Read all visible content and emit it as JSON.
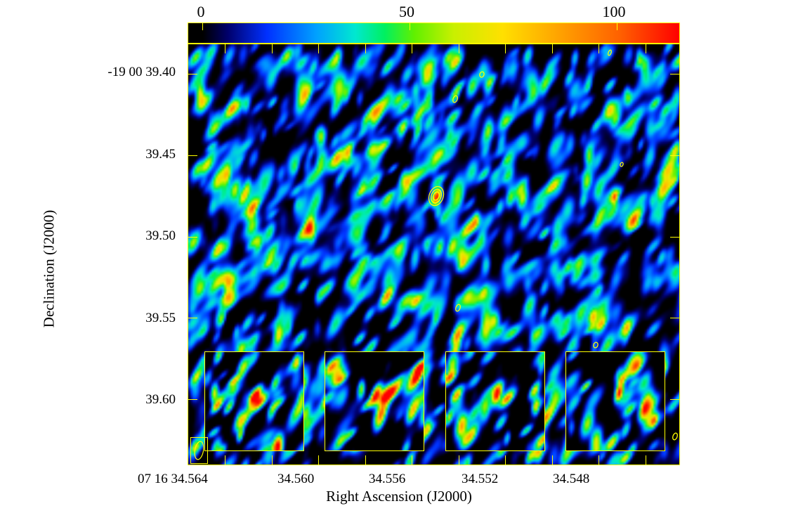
{
  "chart_data": {
    "type": "heatmap",
    "title": "",
    "xlabel": "Right Ascension (J2000)",
    "ylabel": "Declination (J2000)",
    "x_tick_labels": [
      "07 16 34.564",
      "34.560",
      "34.556",
      "34.552",
      "34.548"
    ],
    "y_tick_labels": [
      "-19 00 39.40",
      "39.45",
      "39.50",
      "39.55",
      "39.60"
    ],
    "y_ticks": [
      39.4,
      39.45,
      39.5,
      39.55,
      39.6
    ],
    "ylim": [
      39.382,
      39.64
    ],
    "colorbar": {
      "tick_labels": [
        "0",
        "50",
        "100"
      ],
      "ticks": [
        0,
        50,
        100
      ],
      "range": [
        -3.4,
        115
      ],
      "colormap": "jet"
    },
    "peak_source": {
      "ra": "34.5533",
      "dec": 39.477,
      "peak_value": 110
    },
    "insets": 4,
    "grid": false,
    "contour_color": "#ffff00"
  },
  "colors": {
    "axis": "#ffff00",
    "background": "#000000"
  }
}
